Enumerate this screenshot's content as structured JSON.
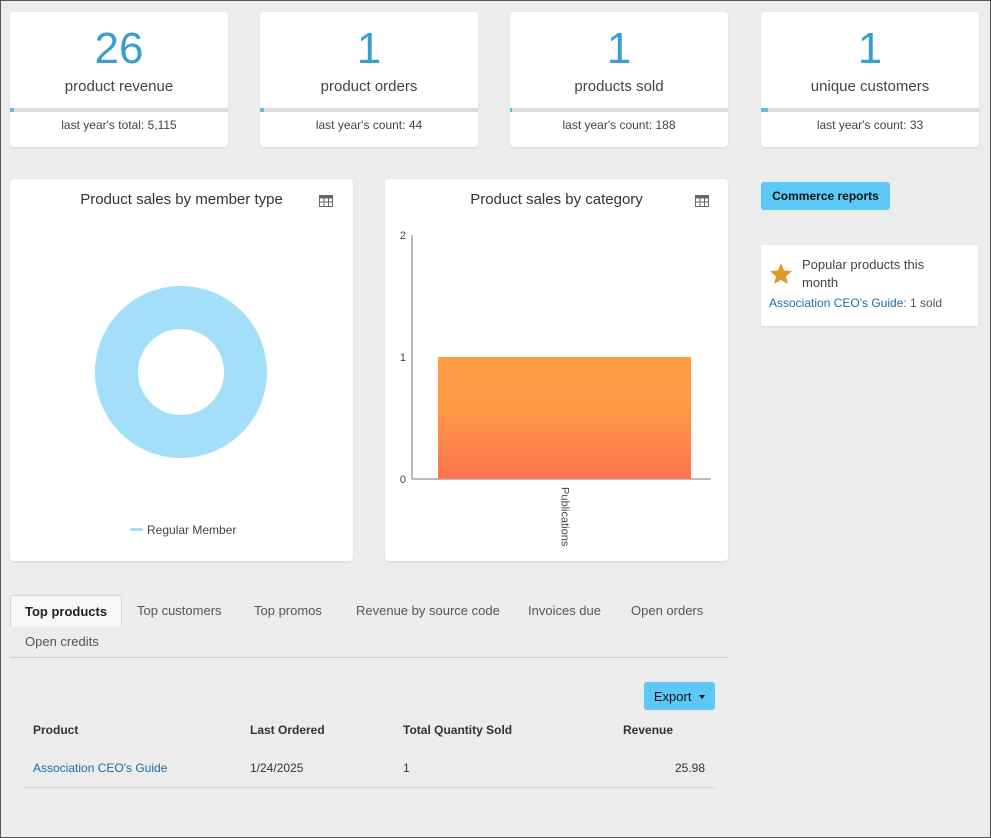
{
  "stats": [
    {
      "value": "26",
      "label": "product revenue",
      "sub": "last year's total: 5,115"
    },
    {
      "value": "1",
      "label": "product orders",
      "sub": "last year's count: 44"
    },
    {
      "value": "1",
      "label": "products sold",
      "sub": "last year's count: 188"
    },
    {
      "value": "1",
      "label": "unique customers",
      "sub": "last year's count: 33"
    }
  ],
  "colors": {
    "accent": "#3a9fcf",
    "button": "#5bc8f5",
    "donut": "#a3dff8",
    "bar_top": "#ff9d45",
    "bar_bottom": "#ff7350",
    "link": "#1a6ea8"
  },
  "member_chart": {
    "title": "Product sales by member type",
    "icon": "table-icon"
  },
  "category_chart": {
    "title": "Product sales by category",
    "icon": "table-icon"
  },
  "chart_data": [
    {
      "type": "pie",
      "title": "Product sales by member type",
      "labels": [
        "Regular Member"
      ],
      "values": [
        1
      ],
      "legend": "bottom"
    },
    {
      "type": "bar",
      "title": "Product sales by category",
      "categories": [
        "Publications"
      ],
      "values": [
        1
      ],
      "ylim": [
        0,
        2
      ],
      "yticks": [
        "0",
        "1",
        "2"
      ]
    }
  ],
  "commerce_reports_label": "Commerce reports",
  "popular": {
    "icon": "star-icon",
    "title": "Popular products this month",
    "product": "Association CEO's Guide",
    "suffix": ": 1 sold"
  },
  "tabs": [
    "Top products",
    "Top customers",
    "Top promos",
    "Revenue by source code",
    "Invoices due",
    "Open orders",
    "Open credits"
  ],
  "export_label": "Export",
  "table": {
    "headers": [
      "Product",
      "Last Ordered",
      "Total Quantity Sold",
      "Revenue"
    ],
    "rows": [
      {
        "product": "Association CEO's Guide",
        "last_ordered": "1/24/2025",
        "qty": "1",
        "revenue": "25.98"
      }
    ]
  }
}
